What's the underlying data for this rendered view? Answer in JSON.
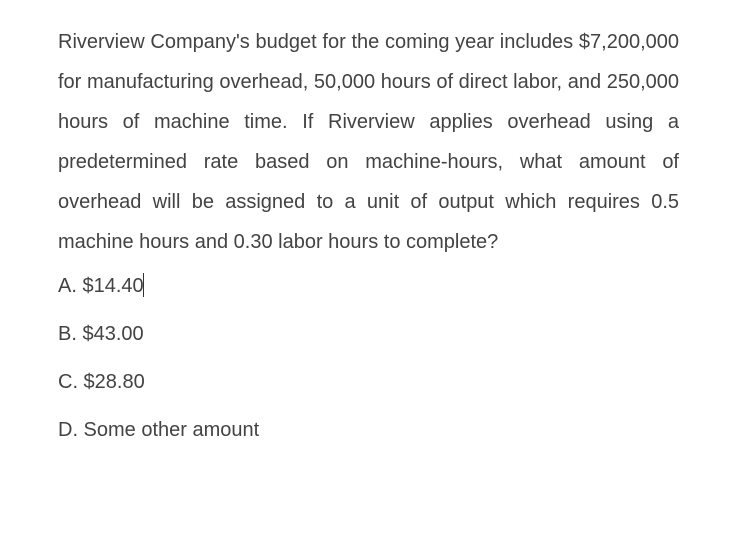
{
  "question": {
    "text": "Riverview Company's budget for the coming year includes $7,200,000 for manufacturing overhead, 50,000 hours of direct labor, and 250,000 hours of machine time. If Riverview applies overhead using a predetermined rate based on machine-hours, what amount of overhead will be assigned to a unit of output which requires 0.5 machine hours and 0.30 labor hours to complete?",
    "font_size": 20,
    "line_height": 40,
    "color": "#434343"
  },
  "options": {
    "a": "A. $14.40",
    "b": "B. $43.00",
    "c": "C. $28.80",
    "d": "D. Some other amount",
    "font_size": 20,
    "line_height": 48,
    "color": "#434343"
  },
  "cursor": {
    "visible": true,
    "after_option": "a",
    "height": 24
  },
  "background_color": "#ffffff"
}
